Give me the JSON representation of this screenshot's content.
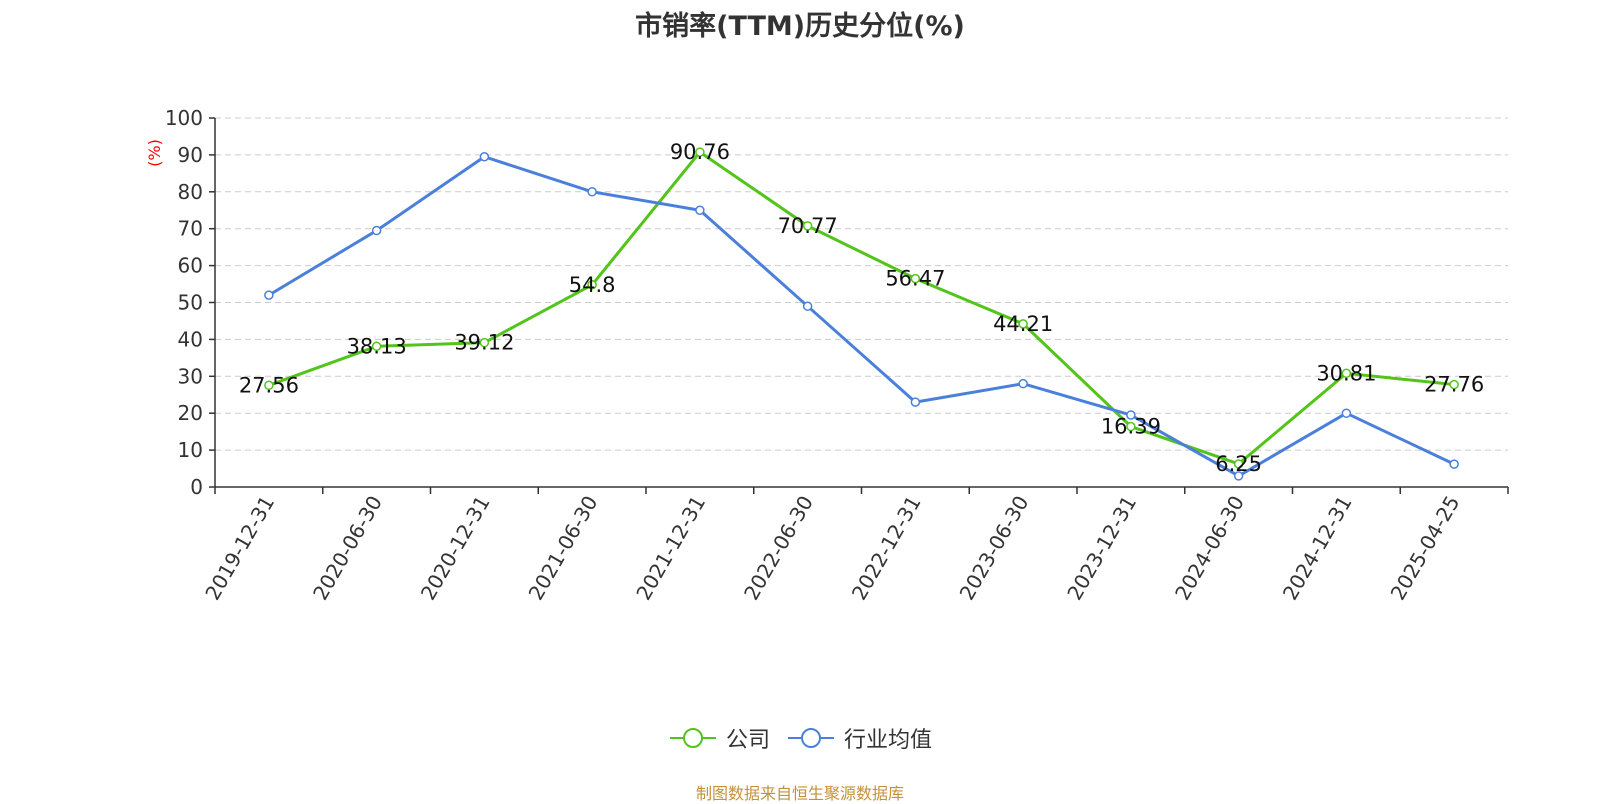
{
  "title": "市销率(TTM)历史分位(%)",
  "source_note": "制图数据来自恒生聚源数据库",
  "colors": {
    "company": "#52c41a",
    "industry": "#4a80db",
    "ylabel": "#ff0000",
    "source": "#c4913a"
  },
  "chart_data": {
    "type": "line",
    "title": "市销率(TTM)历史分位(%)",
    "ylabel": "(%)",
    "xlabel": "",
    "ylim": [
      0,
      100
    ],
    "yticks": [
      0,
      10,
      20,
      30,
      40,
      50,
      60,
      70,
      80,
      90,
      100
    ],
    "grid": true,
    "legend_position": "bottom",
    "x": [
      "2019-12-31",
      "2020-06-30",
      "2020-12-31",
      "2021-06-30",
      "2021-12-31",
      "2022-06-30",
      "2022-12-31",
      "2023-06-30",
      "2023-12-31",
      "2024-06-30",
      "2024-12-31",
      "2025-04-25"
    ],
    "series": [
      {
        "name": "公司",
        "values": [
          27.56,
          38.13,
          39.12,
          54.8,
          90.76,
          70.77,
          56.47,
          44.21,
          16.39,
          6.25,
          30.81,
          27.76
        ],
        "data_labels": true
      },
      {
        "name": "行业均值",
        "values": [
          52,
          69.5,
          89.5,
          80,
          75,
          49,
          23,
          28,
          19.5,
          3,
          20,
          6.2
        ],
        "data_labels": false
      }
    ]
  }
}
